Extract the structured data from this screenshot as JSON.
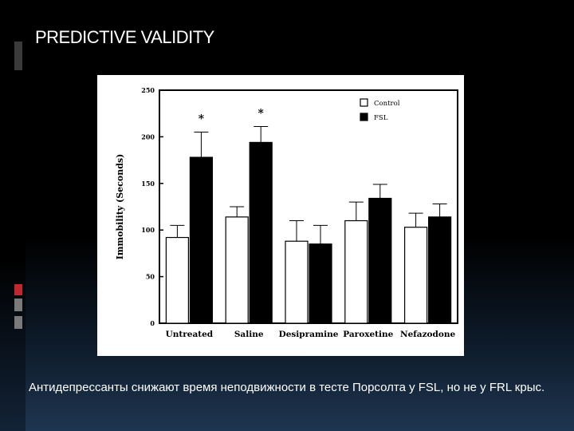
{
  "slide": {
    "title": "PREDICTIVE VALIDITY",
    "caption": "Антидепрессанты снижают время неподвижности в тесте Порсолта у FSL, но не у FRL крыс."
  },
  "colors": {
    "background": "#000000",
    "accent_red": "#c0282d",
    "accent_gray": "#8a8a8a"
  },
  "chart_data": {
    "type": "bar",
    "title": "",
    "xlabel": "",
    "ylabel": "Immobility (Seconds)",
    "ylim": [
      0,
      250
    ],
    "yticks": [
      0,
      50,
      100,
      150,
      200,
      250
    ],
    "categories": [
      "Untreated",
      "Saline",
      "Desipramine",
      "Paroxetine",
      "Nefazodone"
    ],
    "series": [
      {
        "name": "Control",
        "color": "#ffffff",
        "values": [
          92,
          114,
          88,
          110,
          103
        ],
        "errors": [
          13,
          11,
          22,
          20,
          15
        ]
      },
      {
        "name": "FSL",
        "color": "#000000",
        "values": [
          178,
          194,
          85,
          134,
          114
        ],
        "errors": [
          27,
          17,
          20,
          15,
          14
        ]
      }
    ],
    "annotations": [
      {
        "category": "Untreated",
        "series": "FSL",
        "text": "*"
      },
      {
        "category": "Saline",
        "series": "FSL",
        "text": "*"
      }
    ],
    "legend_position": "top-right",
    "grid": false
  }
}
